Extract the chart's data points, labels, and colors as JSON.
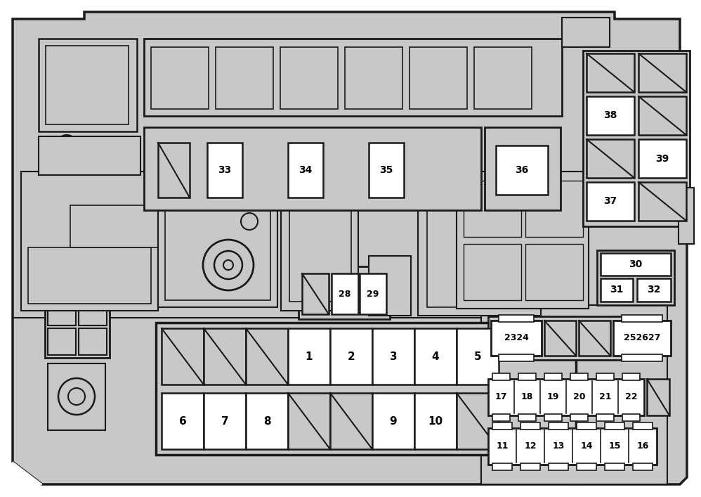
{
  "bg": "#c8c8c8",
  "ol": "#1a1a1a",
  "wh": "#ffffff",
  "lw": 1.8
}
